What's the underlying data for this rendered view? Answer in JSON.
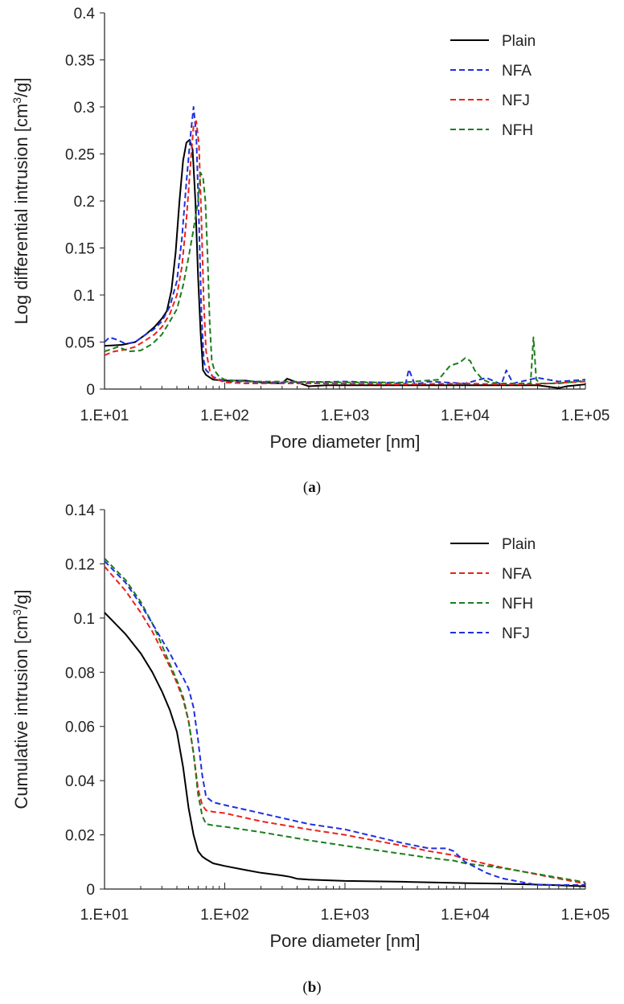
{
  "chart_data": [
    {
      "type": "line",
      "caption": "a",
      "xlabel": "Pore diameter [nm]",
      "ylabel": "Log differential intrusion [cm3/g]",
      "ylabel_main": "Log differential intrusion [cm",
      "ylabel_sup": "3",
      "ylabel_tail": "/g]",
      "x_scale": "log",
      "xlim": [
        10,
        100000
      ],
      "ylim": [
        0,
        0.4
      ],
      "x_ticks": [
        "1.E+01",
        "1.E+02",
        "1.E+03",
        "1.E+04",
        "1.E+05"
      ],
      "y_ticks": [
        "0",
        "0.05",
        "0.1",
        "0.15",
        "0.2",
        "0.25",
        "0.3",
        "0.35",
        "0.4"
      ],
      "legend_position": "top-right",
      "series": [
        {
          "name": "Plain",
          "color": "#000000",
          "style": "solid",
          "x": [
            10,
            14,
            18,
            22,
            26,
            30,
            33,
            36,
            39,
            42,
            45,
            48,
            51,
            54,
            57,
            60,
            63,
            66,
            70,
            80,
            100,
            150,
            200,
            300,
            330,
            400,
            500,
            700,
            1000,
            2000,
            5000,
            10000,
            20000,
            40000,
            60000,
            70000,
            100000
          ],
          "y": [
            0.046,
            0.047,
            0.05,
            0.058,
            0.066,
            0.075,
            0.083,
            0.105,
            0.145,
            0.2,
            0.243,
            0.262,
            0.265,
            0.255,
            0.2,
            0.12,
            0.06,
            0.02,
            0.015,
            0.01,
            0.009,
            0.009,
            0.007,
            0.006,
            0.011,
            0.007,
            0.003,
            0.004,
            0.004,
            0.004,
            0.004,
            0.004,
            0.004,
            0.004,
            0.001,
            0.003,
            0.005
          ]
        },
        {
          "name": "NFA",
          "color": "#1f2fe0",
          "style": "dash",
          "x": [
            10,
            11,
            13,
            15,
            18,
            22,
            26,
            30,
            35,
            40,
            44,
            48,
            52,
            55,
            58,
            61,
            64,
            67,
            70,
            80,
            100,
            150,
            300,
            1000,
            2000,
            3200,
            3400,
            3800,
            5000,
            10000,
            15000,
            20000,
            22000,
            25000,
            40000,
            60000,
            100000
          ],
          "y": [
            0.05,
            0.055,
            0.052,
            0.048,
            0.05,
            0.058,
            0.064,
            0.072,
            0.088,
            0.115,
            0.16,
            0.22,
            0.27,
            0.3,
            0.27,
            0.18,
            0.08,
            0.03,
            0.02,
            0.013,
            0.008,
            0.008,
            0.007,
            0.008,
            0.007,
            0.006,
            0.021,
            0.005,
            0.008,
            0.006,
            0.012,
            0.005,
            0.02,
            0.006,
            0.012,
            0.008,
            0.01
          ]
        },
        {
          "name": "NFJ",
          "color": "#e8231b",
          "style": "dash",
          "x": [
            10,
            12,
            15,
            18,
            22,
            26,
            30,
            35,
            40,
            44,
            48,
            52,
            55,
            58,
            61,
            64,
            67,
            70,
            75,
            80,
            100,
            150,
            300,
            1000,
            3000,
            10000,
            20000,
            30000,
            50000,
            100000
          ],
          "y": [
            0.036,
            0.04,
            0.042,
            0.045,
            0.052,
            0.058,
            0.066,
            0.08,
            0.1,
            0.13,
            0.18,
            0.24,
            0.28,
            0.285,
            0.26,
            0.18,
            0.09,
            0.04,
            0.02,
            0.012,
            0.007,
            0.006,
            0.006,
            0.006,
            0.005,
            0.006,
            0.005,
            0.005,
            0.006,
            0.008
          ]
        },
        {
          "name": "NFH",
          "color": "#1d7d1d",
          "style": "dash",
          "x": [
            10,
            13,
            16,
            20,
            25,
            30,
            35,
            40,
            45,
            50,
            55,
            60,
            63,
            66,
            69,
            72,
            75,
            78,
            82,
            90,
            100,
            150,
            300,
            1000,
            3000,
            6000,
            7500,
            9000,
            10000,
            11000,
            12000,
            14000,
            16000,
            20000,
            30000,
            35000,
            37000,
            39000,
            42000,
            60000,
            100000
          ],
          "y": [
            0.04,
            0.045,
            0.04,
            0.041,
            0.048,
            0.058,
            0.072,
            0.085,
            0.11,
            0.14,
            0.17,
            0.2,
            0.23,
            0.225,
            0.2,
            0.14,
            0.07,
            0.03,
            0.02,
            0.013,
            0.01,
            0.008,
            0.008,
            0.007,
            0.007,
            0.01,
            0.025,
            0.028,
            0.033,
            0.03,
            0.02,
            0.01,
            0.007,
            0.006,
            0.006,
            0.006,
            0.055,
            0.01,
            0.006,
            0.006,
            0.009
          ]
        }
      ]
    },
    {
      "type": "line",
      "caption": "b",
      "xlabel": "Pore diameter [nm]",
      "ylabel": "Cumulative intrusion [cm3/g]",
      "ylabel_main": "Cumulative intrusion [cm",
      "ylabel_sup": "3",
      "ylabel_tail": "/g]",
      "x_scale": "log",
      "xlim": [
        10,
        100000
      ],
      "ylim": [
        0,
        0.14
      ],
      "x_ticks": [
        "1.E+01",
        "1.E+02",
        "1.E+03",
        "1.E+04",
        "1.E+05"
      ],
      "y_ticks": [
        "0",
        "0.02",
        "0.04",
        "0.06",
        "0.08",
        "0.1",
        "0.12",
        "0.14"
      ],
      "legend_position": "top-right",
      "series": [
        {
          "name": "Plain",
          "color": "#000000",
          "style": "solid",
          "x": [
            10,
            15,
            20,
            25,
            30,
            35,
            40,
            45,
            50,
            55,
            60,
            65,
            70,
            80,
            100,
            150,
            200,
            300,
            350,
            400,
            500,
            1000,
            3000,
            10000,
            20000,
            50000,
            100000
          ],
          "y": [
            0.102,
            0.094,
            0.087,
            0.08,
            0.073,
            0.066,
            0.058,
            0.045,
            0.03,
            0.02,
            0.014,
            0.012,
            0.011,
            0.0095,
            0.0085,
            0.007,
            0.006,
            0.005,
            0.0045,
            0.0038,
            0.0035,
            0.003,
            0.0027,
            0.0022,
            0.002,
            0.0015,
            0.001
          ]
        },
        {
          "name": "NFA",
          "color": "#e8231b",
          "style": "dash",
          "x": [
            10,
            15,
            20,
            25,
            30,
            35,
            40,
            45,
            50,
            55,
            60,
            65,
            70,
            80,
            100,
            200,
            500,
            1000,
            3000,
            5000,
            8000,
            10000,
            20000,
            50000,
            100000
          ],
          "y": [
            0.119,
            0.11,
            0.102,
            0.095,
            0.088,
            0.082,
            0.076,
            0.07,
            0.062,
            0.05,
            0.037,
            0.031,
            0.029,
            0.0285,
            0.028,
            0.025,
            0.022,
            0.02,
            0.016,
            0.014,
            0.0125,
            0.011,
            0.008,
            0.0045,
            0.002
          ]
        },
        {
          "name": "NFH",
          "color": "#1d7d1d",
          "style": "dash",
          "x": [
            10,
            15,
            20,
            25,
            30,
            35,
            40,
            45,
            50,
            55,
            60,
            65,
            70,
            80,
            100,
            200,
            500,
            1000,
            3000,
            5000,
            8000,
            10000,
            20000,
            50000,
            100000
          ],
          "y": [
            0.122,
            0.114,
            0.106,
            0.098,
            0.09,
            0.083,
            0.077,
            0.071,
            0.062,
            0.05,
            0.035,
            0.027,
            0.024,
            0.0235,
            0.023,
            0.021,
            0.018,
            0.016,
            0.013,
            0.0115,
            0.0105,
            0.0095,
            0.0078,
            0.0048,
            0.0025
          ]
        },
        {
          "name": "NFJ",
          "color": "#1f2fe0",
          "style": "dash",
          "x": [
            10,
            15,
            20,
            25,
            30,
            35,
            40,
            45,
            50,
            55,
            60,
            65,
            70,
            75,
            80,
            100,
            200,
            500,
            1000,
            3000,
            5000,
            7000,
            8000,
            10000,
            15000,
            20000,
            30000,
            40000,
            100000
          ],
          "y": [
            0.121,
            0.113,
            0.105,
            0.098,
            0.092,
            0.087,
            0.082,
            0.078,
            0.074,
            0.067,
            0.055,
            0.042,
            0.034,
            0.033,
            0.032,
            0.031,
            0.028,
            0.024,
            0.022,
            0.017,
            0.015,
            0.015,
            0.014,
            0.01,
            0.006,
            0.004,
            0.0025,
            0.0015,
            0.0015
          ]
        }
      ]
    }
  ]
}
